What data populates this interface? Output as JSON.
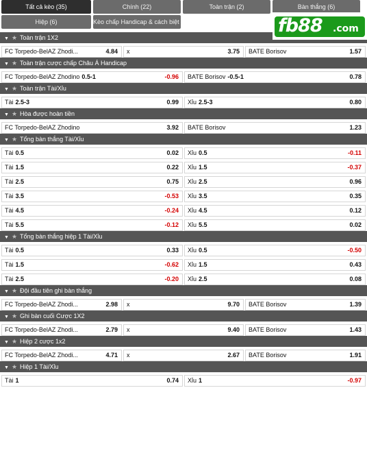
{
  "tabs": [
    {
      "label": "Tất cả kèo (35)",
      "active": true
    },
    {
      "label": "Chính (22)",
      "active": false
    },
    {
      "label": "Toàn trận (2)",
      "active": false
    },
    {
      "label": "Bàn thắng (6)",
      "active": false
    },
    {
      "label": "Hiệp (6)",
      "active": false
    },
    {
      "label": "Kèo chấp Handicap & cách biệt (1)",
      "active": false
    }
  ],
  "logo": {
    "brand": "fb88",
    "domain": ".com"
  },
  "icons": {
    "collapse": "chevron-down-icon",
    "favorite": "star-icon"
  },
  "colors": {
    "negative_odds": "#d40000",
    "header_bg": "#555555",
    "tab_active_bg": "#2e2e2e",
    "tab_bg": "#6b6b6b"
  },
  "markets": [
    {
      "title": "Toàn trận 1X2",
      "layout": "three",
      "rows": [
        [
          {
            "name": "FC Torpedo-BelAZ Zhodi...",
            "line": "",
            "odds": "4.84"
          },
          {
            "name": "x",
            "line": "",
            "odds": "3.75"
          },
          {
            "name": "BATE Borisov",
            "line": "",
            "odds": "1.57"
          }
        ]
      ]
    },
    {
      "title": "Toàn trận cược chấp Châu Á Handicap",
      "layout": "two",
      "rows": [
        [
          {
            "name": "FC Torpedo-BelAZ Zhodino",
            "line": "0.5-1",
            "odds": "-0.96"
          },
          {
            "name": "BATE Borisov",
            "line": "-0.5-1",
            "odds": "0.78"
          }
        ]
      ]
    },
    {
      "title": "Toàn trận Tài/Xỉu",
      "layout": "two",
      "rows": [
        [
          {
            "name": "Tài",
            "line": "2.5-3",
            "odds": "0.99"
          },
          {
            "name": "Xỉu",
            "line": "2.5-3",
            "odds": "0.80"
          }
        ]
      ]
    },
    {
      "title": "Hòa được hoàn tiền",
      "layout": "two",
      "rows": [
        [
          {
            "name": "FC Torpedo-BelAZ Zhodino",
            "line": "",
            "odds": "3.92"
          },
          {
            "name": "BATE Borisov",
            "line": "",
            "odds": "1.23"
          }
        ]
      ]
    },
    {
      "title": "Tổng bàn thắng Tài/Xỉu",
      "layout": "two",
      "rows": [
        [
          {
            "name": "Tài",
            "line": "0.5",
            "odds": "0.02"
          },
          {
            "name": "Xỉu",
            "line": "0.5",
            "odds": "-0.11"
          }
        ],
        [
          {
            "name": "Tài",
            "line": "1.5",
            "odds": "0.22"
          },
          {
            "name": "Xỉu",
            "line": "1.5",
            "odds": "-0.37"
          }
        ],
        [
          {
            "name": "Tài",
            "line": "2.5",
            "odds": "0.75"
          },
          {
            "name": "Xỉu",
            "line": "2.5",
            "odds": "0.96"
          }
        ],
        [
          {
            "name": "Tài",
            "line": "3.5",
            "odds": "-0.53"
          },
          {
            "name": "Xỉu",
            "line": "3.5",
            "odds": "0.35"
          }
        ],
        [
          {
            "name": "Tài",
            "line": "4.5",
            "odds": "-0.24"
          },
          {
            "name": "Xỉu",
            "line": "4.5",
            "odds": "0.12"
          }
        ],
        [
          {
            "name": "Tài",
            "line": "5.5",
            "odds": "-0.12"
          },
          {
            "name": "Xỉu",
            "line": "5.5",
            "odds": "0.02"
          }
        ]
      ]
    },
    {
      "title": "Tổng bàn thắng hiệp 1 Tài/Xỉu",
      "layout": "two",
      "rows": [
        [
          {
            "name": "Tài",
            "line": "0.5",
            "odds": "0.33"
          },
          {
            "name": "Xỉu",
            "line": "0.5",
            "odds": "-0.50"
          }
        ],
        [
          {
            "name": "Tài",
            "line": "1.5",
            "odds": "-0.62"
          },
          {
            "name": "Xỉu",
            "line": "1.5",
            "odds": "0.43"
          }
        ],
        [
          {
            "name": "Tài",
            "line": "2.5",
            "odds": "-0.20"
          },
          {
            "name": "Xỉu",
            "line": "2.5",
            "odds": "0.08"
          }
        ]
      ]
    },
    {
      "title": "Đội đầu tiên ghi bàn thắng",
      "layout": "three",
      "rows": [
        [
          {
            "name": "FC Torpedo-BelAZ Zhodi...",
            "line": "",
            "odds": "2.98"
          },
          {
            "name": "x",
            "line": "",
            "odds": "9.70"
          },
          {
            "name": "BATE Borisov",
            "line": "",
            "odds": "1.39"
          }
        ]
      ]
    },
    {
      "title": "Ghi bàn cuối Cược 1X2",
      "layout": "three",
      "rows": [
        [
          {
            "name": "FC Torpedo-BelAZ Zhodi...",
            "line": "",
            "odds": "2.79"
          },
          {
            "name": "x",
            "line": "",
            "odds": "9.40"
          },
          {
            "name": "BATE Borisov",
            "line": "",
            "odds": "1.43"
          }
        ]
      ]
    },
    {
      "title": "Hiệp 2 cược 1x2",
      "layout": "three",
      "rows": [
        [
          {
            "name": "FC Torpedo-BelAZ Zhodi...",
            "line": "",
            "odds": "4.71"
          },
          {
            "name": "x",
            "line": "",
            "odds": "2.67"
          },
          {
            "name": "BATE Borisov",
            "line": "",
            "odds": "1.91"
          }
        ]
      ]
    },
    {
      "title": "Hiệp 1 Tài/Xỉu",
      "layout": "two",
      "rows": [
        [
          {
            "name": "Tài",
            "line": "1",
            "odds": "0.74"
          },
          {
            "name": "Xỉu",
            "line": "1",
            "odds": "-0.97"
          }
        ]
      ]
    }
  ]
}
